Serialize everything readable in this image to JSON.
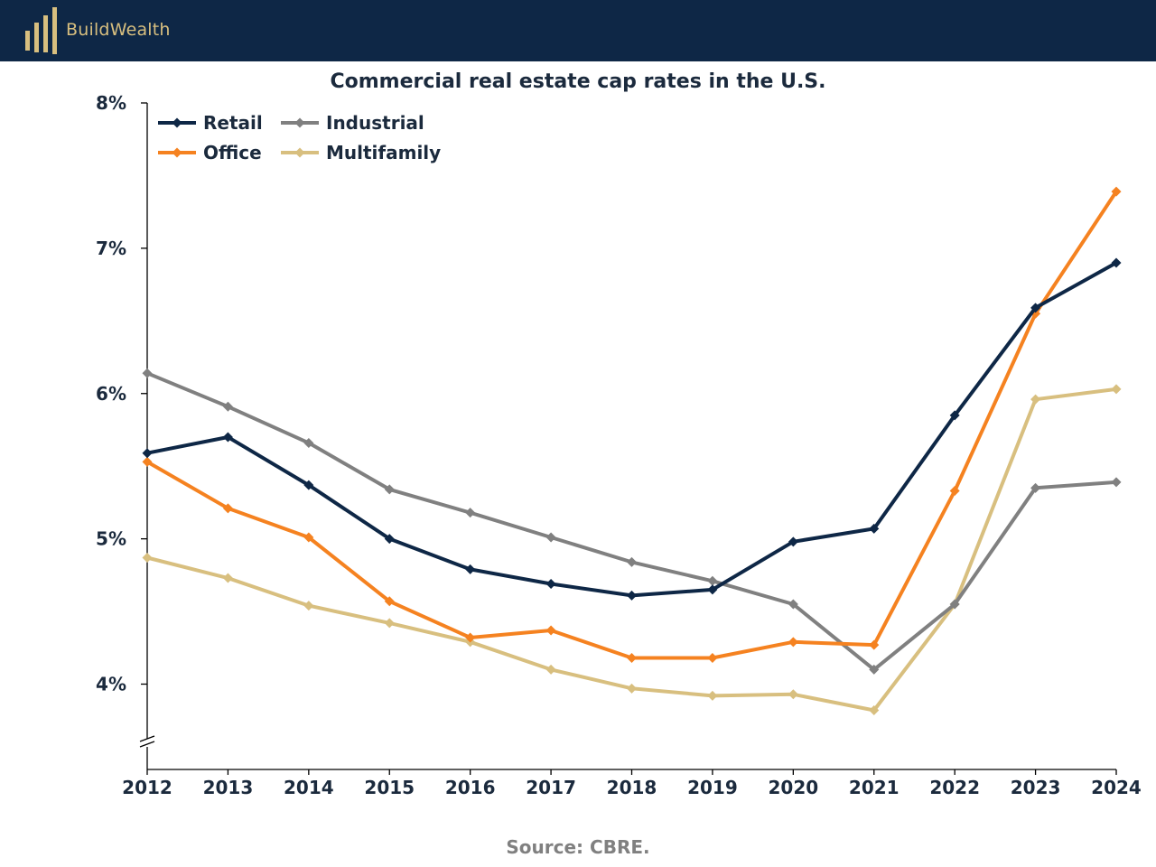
{
  "brand": {
    "name": "BuildWealth",
    "bar_color": "#0e2746",
    "logo_color": "#d8bf7f"
  },
  "source": "Source: CBRE.",
  "chart_data": {
    "type": "line",
    "title": "Commercial real estate cap rates in the U.S.",
    "xlabel": "",
    "ylabel": "",
    "x": [
      "2012",
      "2013",
      "2014",
      "2015",
      "2016",
      "2017",
      "2018",
      "2019",
      "2020",
      "2021",
      "2022",
      "2023",
      "2024"
    ],
    "y_ticks": [
      "4%",
      "5%",
      "6%",
      "7%",
      "8%"
    ],
    "ylim": [
      3.4,
      8.0
    ],
    "y_axis_break": true,
    "grid": false,
    "legend_position": "top-left",
    "series": [
      {
        "name": "Retail",
        "color": "#0e2746",
        "marker": "diamond",
        "values": [
          5.59,
          5.7,
          5.37,
          5.0,
          4.79,
          4.69,
          4.61,
          4.65,
          4.98,
          5.07,
          5.85,
          6.59,
          6.9
        ]
      },
      {
        "name": "Industrial",
        "color": "#808080",
        "marker": "diamond",
        "values": [
          6.14,
          5.91,
          5.66,
          5.34,
          5.18,
          5.01,
          4.84,
          4.71,
          4.55,
          4.1,
          4.55,
          5.35,
          5.39
        ]
      },
      {
        "name": "Office",
        "color": "#f58220",
        "marker": "diamond",
        "values": [
          5.53,
          5.21,
          5.01,
          4.57,
          4.32,
          4.37,
          4.18,
          4.18,
          4.29,
          4.27,
          5.33,
          6.55,
          7.39
        ]
      },
      {
        "name": "Multifamily",
        "color": "#d8bf7f",
        "marker": "diamond",
        "values": [
          4.87,
          4.73,
          4.54,
          4.42,
          4.29,
          4.1,
          3.97,
          3.92,
          3.93,
          3.82,
          4.55,
          5.96,
          6.03
        ]
      }
    ]
  }
}
